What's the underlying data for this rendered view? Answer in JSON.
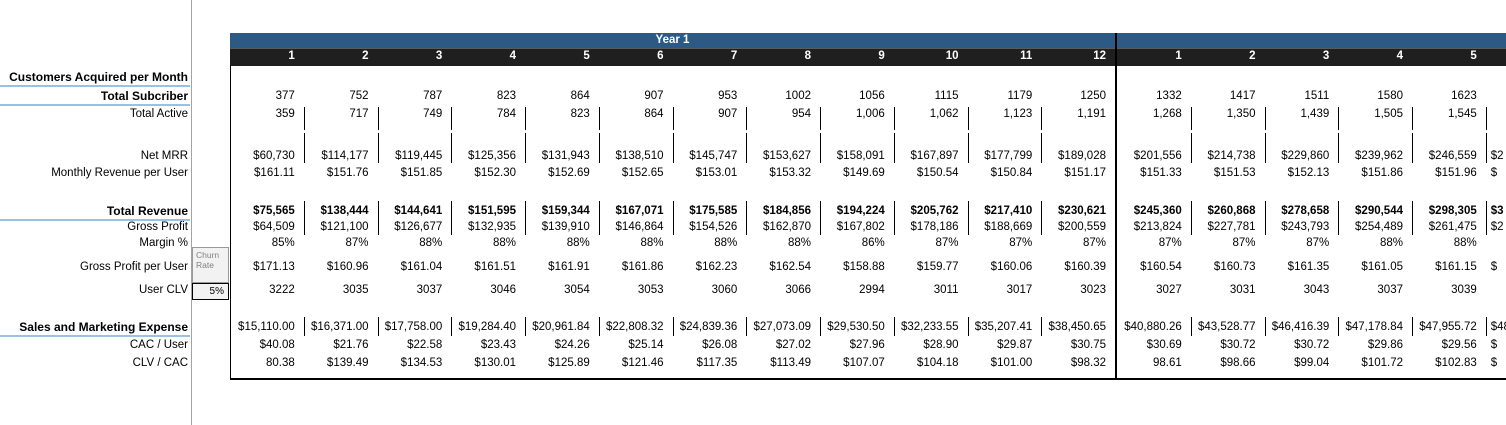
{
  "header": {
    "year1_label": "Year 1",
    "year1_months": [
      "1",
      "2",
      "3",
      "4",
      "5",
      "6",
      "7",
      "8",
      "9",
      "10",
      "11",
      "12"
    ],
    "year2_months": [
      "1",
      "2",
      "3",
      "4",
      "5"
    ]
  },
  "assumptions": {
    "churn_label": "Churn Rate",
    "churn_value": "5%"
  },
  "colors": {
    "year_band_blue": "#2d5a85",
    "month_band_dark": "#1f1f1f",
    "underline_blue": "#9cc0e0",
    "grid_black": "#000000"
  },
  "rows": [
    {
      "id": "customers",
      "label": "Customers Acquired per Month",
      "bold": true,
      "underline": true,
      "bold_values": false,
      "y1": [],
      "y2": [],
      "clip": ""
    },
    {
      "id": "subcriber",
      "label": "Total Subcriber",
      "bold": true,
      "underline": true,
      "bold_values": false,
      "y1": [
        "377",
        "752",
        "787",
        "823",
        "864",
        "907",
        "953",
        "1002",
        "1056",
        "1115",
        "1179",
        "1250"
      ],
      "y2": [
        "1332",
        "1417",
        "1511",
        "1580",
        "1623"
      ],
      "clip": ""
    },
    {
      "id": "active",
      "label": "Total Active",
      "bold": false,
      "underline": false,
      "bold_values": false,
      "y1": [
        "359",
        "717",
        "749",
        "784",
        "823",
        "864",
        "907",
        "954",
        "1,006",
        "1,062",
        "1,123",
        "1,191"
      ],
      "y2": [
        "1,268",
        "1,350",
        "1,439",
        "1,505",
        "1,545"
      ],
      "clip": ""
    },
    {
      "id": "net_mrr",
      "label": "Net MRR",
      "bold": false,
      "underline": false,
      "bold_values": false,
      "y1": [
        "$60,730",
        "$114,177",
        "$119,445",
        "$125,356",
        "$131,943",
        "$138,510",
        "$145,747",
        "$153,627",
        "$158,091",
        "$167,897",
        "$177,799",
        "$189,028"
      ],
      "y2": [
        "$201,556",
        "$214,738",
        "$229,860",
        "$239,962",
        "$246,559"
      ],
      "clip": "$2"
    },
    {
      "id": "monthly_rev",
      "label": "Monthly Revenue per User",
      "bold": false,
      "underline": false,
      "bold_values": false,
      "y1": [
        "$161.11",
        "$151.76",
        "$151.85",
        "$152.30",
        "$152.69",
        "$152.65",
        "$153.01",
        "$153.32",
        "$149.69",
        "$150.54",
        "$150.84",
        "$151.17"
      ],
      "y2": [
        "$151.33",
        "$151.53",
        "$152.13",
        "$151.86",
        "$151.96"
      ],
      "clip": "$"
    },
    {
      "id": "total_revenue",
      "label": "Total Revenue",
      "bold": true,
      "underline": true,
      "bold_values": true,
      "y1": [
        "$75,565",
        "$138,444",
        "$144,641",
        "$151,595",
        "$159,344",
        "$167,071",
        "$175,585",
        "$184,856",
        "$194,224",
        "$205,762",
        "$217,410",
        "$230,621"
      ],
      "y2": [
        "$245,360",
        "$260,868",
        "$278,658",
        "$290,544",
        "$298,305"
      ],
      "clip": "$3"
    },
    {
      "id": "gross_profit",
      "label": "Gross Profit",
      "bold": false,
      "underline": false,
      "bold_values": false,
      "y1": [
        "$64,509",
        "$121,100",
        "$126,677",
        "$132,935",
        "$139,910",
        "$146,864",
        "$154,526",
        "$162,870",
        "$167,802",
        "$178,186",
        "$188,669",
        "$200,559"
      ],
      "y2": [
        "$213,824",
        "$227,781",
        "$243,793",
        "$254,489",
        "$261,475"
      ],
      "clip": "$2"
    },
    {
      "id": "margin",
      "label": "Margin %",
      "bold": false,
      "underline": false,
      "bold_values": false,
      "y1": [
        "85%",
        "87%",
        "88%",
        "88%",
        "88%",
        "88%",
        "88%",
        "88%",
        "86%",
        "87%",
        "87%",
        "87%"
      ],
      "y2": [
        "87%",
        "87%",
        "87%",
        "88%",
        "88%"
      ],
      "clip": ""
    },
    {
      "id": "gppu",
      "label": "Gross Profit per User",
      "bold": false,
      "underline": false,
      "bold_values": false,
      "y1": [
        "$171.13",
        "$160.96",
        "$161.04",
        "$161.51",
        "$161.91",
        "$161.86",
        "$162.23",
        "$162.54",
        "$158.88",
        "$159.77",
        "$160.06",
        "$160.39"
      ],
      "y2": [
        "$160.54",
        "$160.73",
        "$161.35",
        "$161.05",
        "$161.15"
      ],
      "clip": "$"
    },
    {
      "id": "user_clv",
      "label": "User CLV",
      "bold": false,
      "underline": false,
      "bold_values": false,
      "y1": [
        "3222",
        "3035",
        "3037",
        "3046",
        "3054",
        "3053",
        "3060",
        "3066",
        "2994",
        "3011",
        "3017",
        "3023"
      ],
      "y2": [
        "3027",
        "3031",
        "3043",
        "3037",
        "3039"
      ],
      "clip": ""
    },
    {
      "id": "sm",
      "label": "Sales and Marketing Expense",
      "bold": true,
      "underline": true,
      "bold_values": false,
      "y1": [
        "$15,110.00",
        "$16,371.00",
        "$17,758.00",
        "$19,284.40",
        "$20,961.84",
        "$22,808.32",
        "$24,839.36",
        "$27,073.09",
        "$29,530.50",
        "$32,233.55",
        "$35,207.41",
        "$38,450.65"
      ],
      "y2": [
        "$40,880.26",
        "$43,528.77",
        "$46,416.39",
        "$47,178.84",
        "$47,955.72"
      ],
      "clip": "$48"
    },
    {
      "id": "cac",
      "label": "CAC / User",
      "bold": false,
      "underline": false,
      "bold_values": false,
      "y1": [
        "$40.08",
        "$21.76",
        "$22.58",
        "$23.43",
        "$24.26",
        "$25.14",
        "$26.08",
        "$27.02",
        "$27.96",
        "$28.90",
        "$29.87",
        "$30.75"
      ],
      "y2": [
        "$30.69",
        "$30.72",
        "$30.72",
        "$29.86",
        "$29.56"
      ],
      "clip": "$"
    },
    {
      "id": "clv_cac",
      "label": "CLV / CAC",
      "bold": false,
      "underline": false,
      "bold_values": false,
      "y1": [
        "80.38",
        "$139.49",
        "$134.53",
        "$130.01",
        "$125.89",
        "$121.46",
        "$117.35",
        "$113.49",
        "$107.07",
        "$104.18",
        "$101.00",
        "$98.32"
      ],
      "y2": [
        "98.61",
        "$98.66",
        "$99.04",
        "$101.72",
        "$102.83"
      ],
      "clip": "$"
    }
  ]
}
